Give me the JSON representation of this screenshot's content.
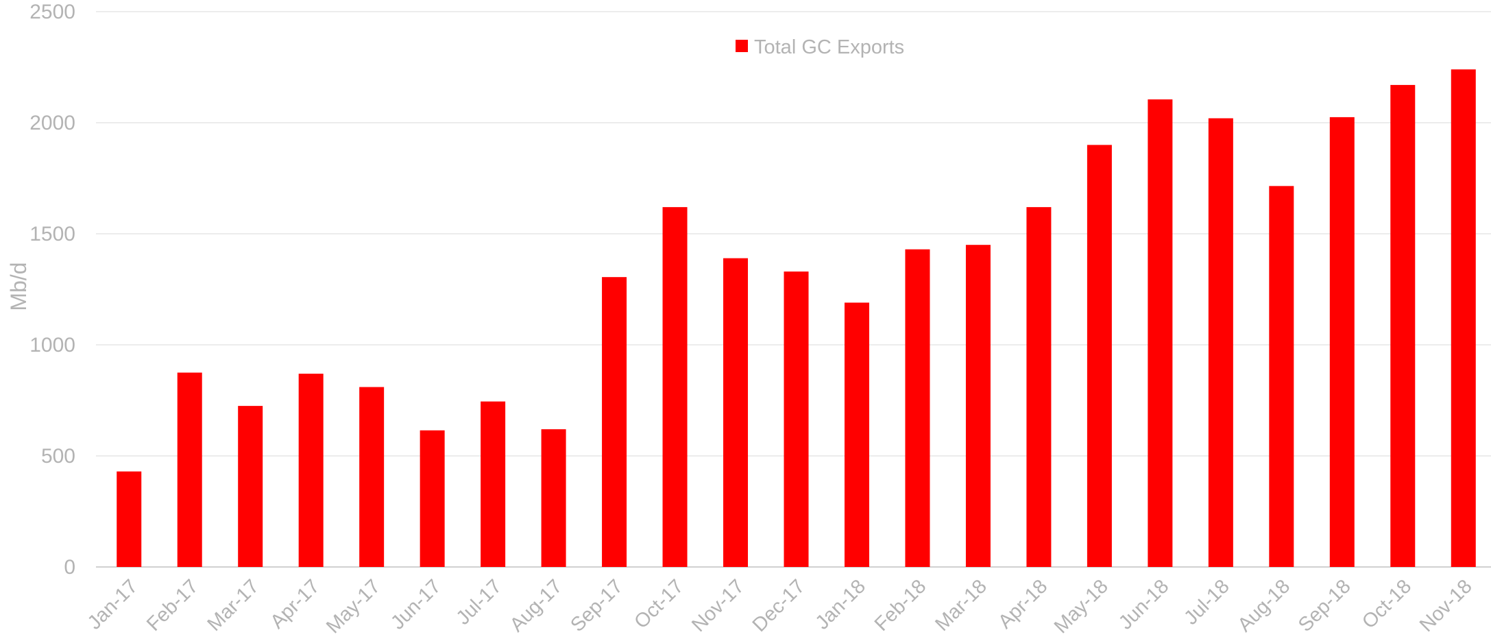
{
  "chart_data": {
    "type": "bar",
    "ylabel": "Mb/d",
    "xlabel": "",
    "ylim": [
      0,
      2500
    ],
    "yticks": [
      "0",
      "500",
      "1000",
      "1500",
      "2000",
      "2500"
    ],
    "grid": true,
    "legend_position": "top-center",
    "categories": [
      "Jan-17",
      "Feb-17",
      "Mar-17",
      "Apr-17",
      "May-17",
      "Jun-17",
      "Jul-17",
      "Aug-17",
      "Sep-17",
      "Oct-17",
      "Nov-17",
      "Dec-17",
      "Jan-18",
      "Feb-18",
      "Mar-18",
      "Apr-18",
      "May-18",
      "Jun-18",
      "Jul-18",
      "Aug-18",
      "Sep-18",
      "Oct-18",
      "Nov-18"
    ],
    "series": [
      {
        "name": "Total GC Exports",
        "color": "#ff0000",
        "values": [
          430,
          875,
          725,
          870,
          810,
          615,
          745,
          620,
          1305,
          1620,
          1390,
          1330,
          1190,
          1430,
          1450,
          1620,
          1900,
          2105,
          2020,
          1715,
          2025,
          2170,
          2240
        ]
      }
    ]
  }
}
